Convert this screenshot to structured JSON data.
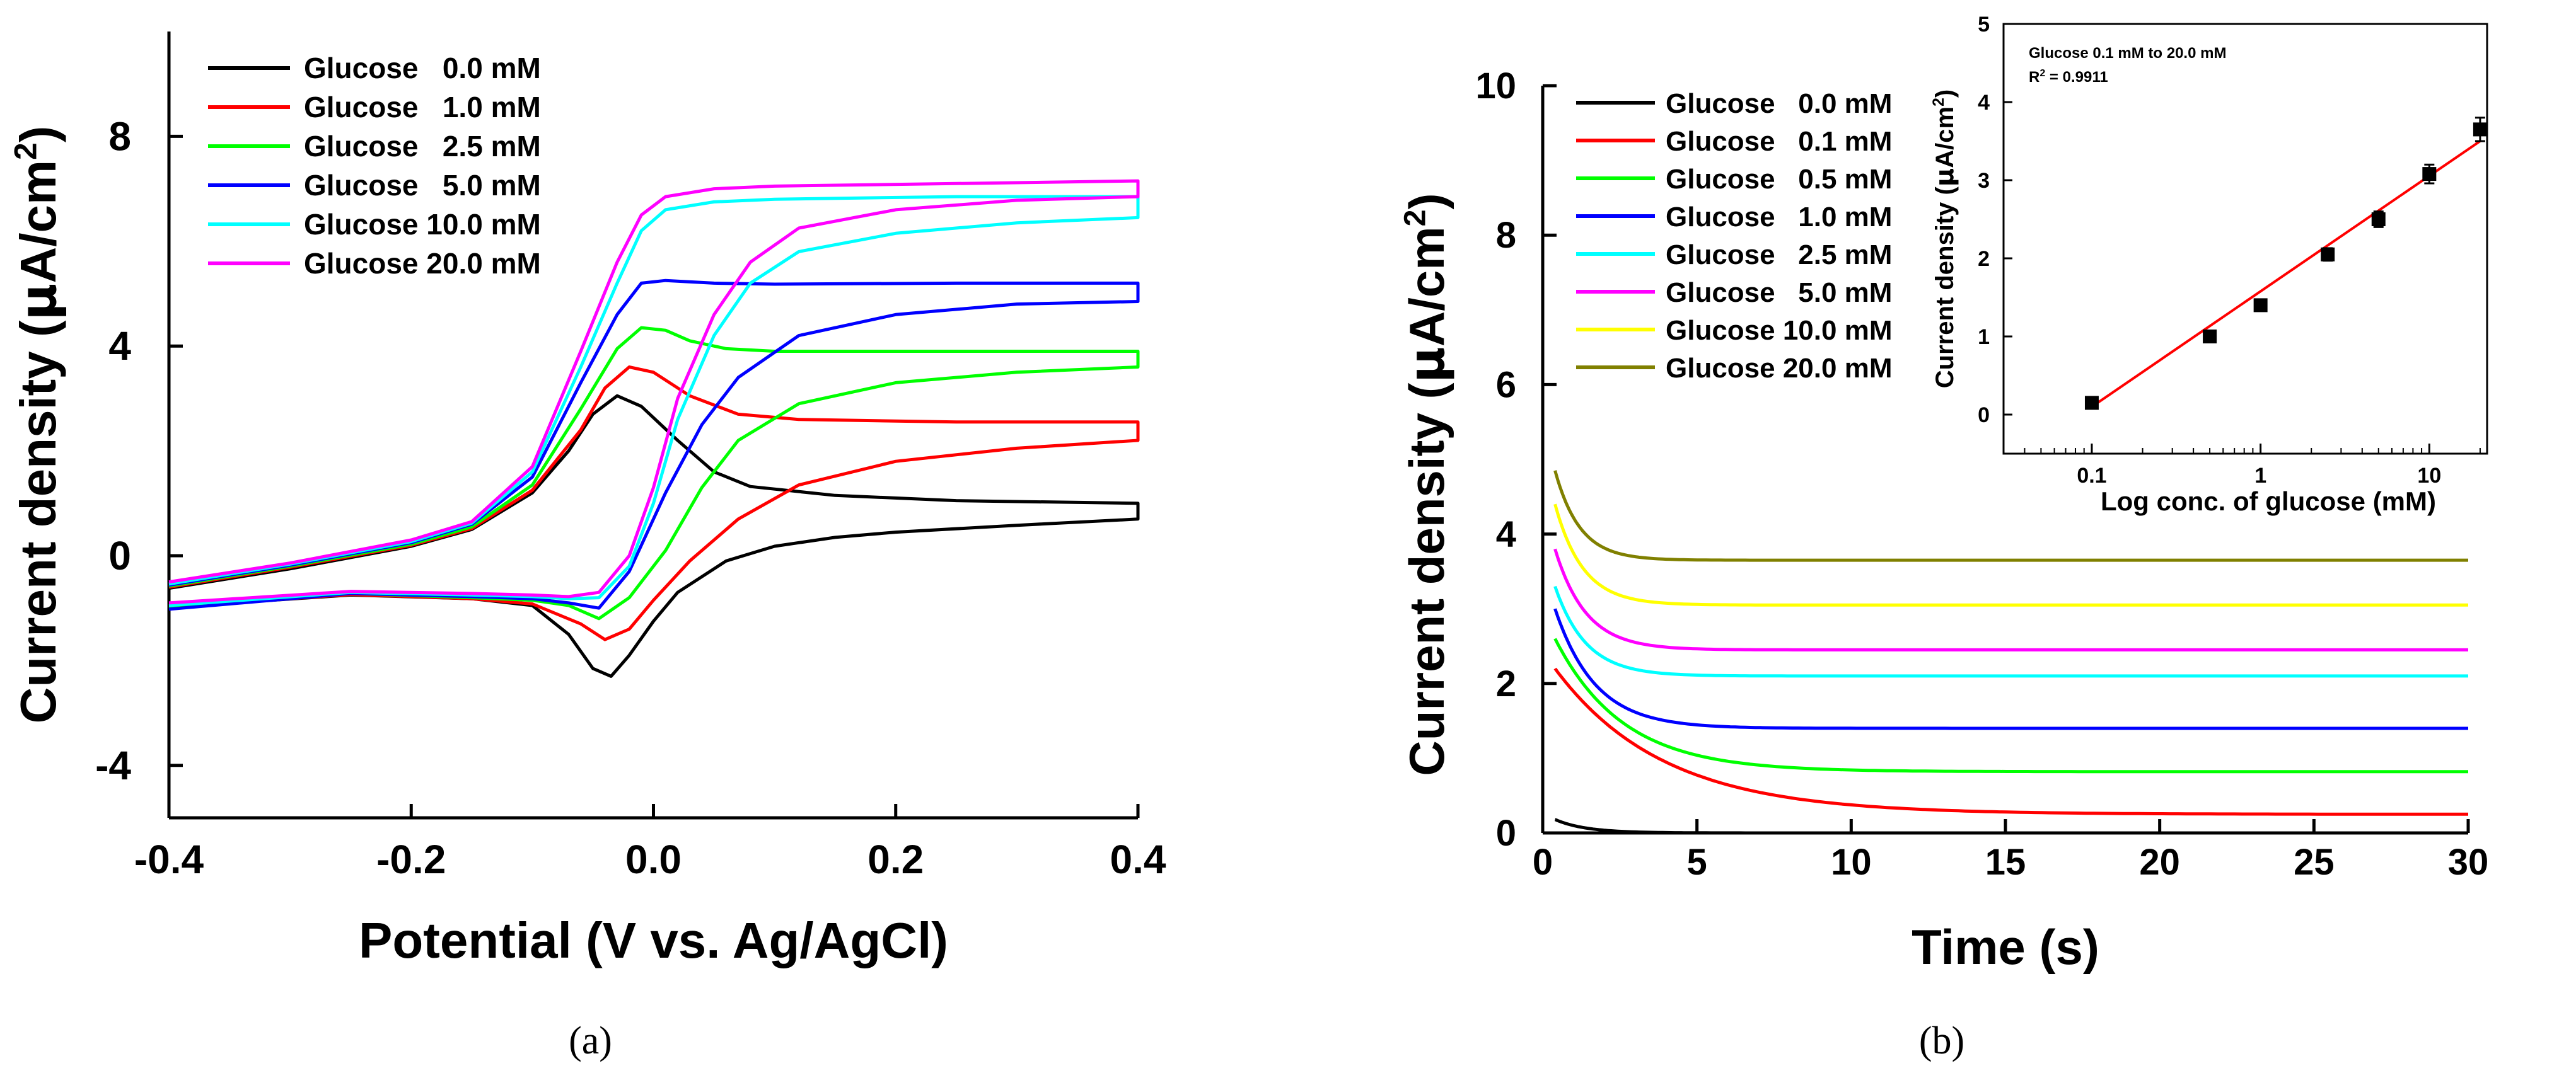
{
  "chart_data": [
    {
      "id": "a",
      "type": "line",
      "panel_label": "(a)",
      "title": "",
      "xlabel": "Potential (V vs. Ag/AgCl)",
      "ylabel": "Current density (µA/cm²)",
      "ylabel_parts": {
        "text": "Current density (",
        "mu": "µ",
        "unit": "A/cm",
        "sup": "2",
        "close": ")"
      },
      "xlim": [
        -0.4,
        0.4
      ],
      "ylim": [
        -5,
        10
      ],
      "xticks": [
        -0.4,
        -0.2,
        0.0,
        0.2,
        0.4
      ],
      "xtick_labels": [
        "-0.4",
        "-0.2",
        "0.0",
        "0.2",
        "0.4"
      ],
      "yticks": [
        -4,
        0,
        4,
        8
      ],
      "ytick_labels": [
        "-4",
        "0",
        "4",
        "8"
      ],
      "legend_position": "top-left",
      "series": [
        {
          "name": "Glucose   0.0 mM",
          "color": "#000000",
          "forward": [
            [
              -0.4,
              -0.62
            ],
            [
              -0.3,
              -0.25
            ],
            [
              -0.2,
              0.18
            ],
            [
              -0.15,
              0.5
            ],
            [
              -0.1,
              1.2
            ],
            [
              -0.07,
              2.0
            ],
            [
              -0.05,
              2.7
            ],
            [
              -0.03,
              3.05
            ],
            [
              -0.01,
              2.85
            ],
            [
              0.02,
              2.2
            ],
            [
              0.05,
              1.6
            ],
            [
              0.08,
              1.32
            ],
            [
              0.15,
              1.15
            ],
            [
              0.25,
              1.05
            ],
            [
              0.4,
              1.0
            ]
          ],
          "reverse": [
            [
              0.4,
              0.7
            ],
            [
              0.3,
              0.58
            ],
            [
              0.2,
              0.45
            ],
            [
              0.15,
              0.35
            ],
            [
              0.1,
              0.18
            ],
            [
              0.06,
              -0.1
            ],
            [
              0.02,
              -0.7
            ],
            [
              0.0,
              -1.25
            ],
            [
              -0.02,
              -1.9
            ],
            [
              -0.035,
              -2.3
            ],
            [
              -0.05,
              -2.15
            ],
            [
              -0.07,
              -1.5
            ],
            [
              -0.1,
              -0.95
            ],
            [
              -0.15,
              -0.82
            ],
            [
              -0.25,
              -0.75
            ],
            [
              -0.4,
              -0.98
            ]
          ]
        },
        {
          "name": "Glucose   1.0 mM",
          "color": "#ff0000",
          "forward": [
            [
              -0.4,
              -0.6
            ],
            [
              -0.3,
              -0.22
            ],
            [
              -0.2,
              0.2
            ],
            [
              -0.15,
              0.52
            ],
            [
              -0.1,
              1.25
            ],
            [
              -0.06,
              2.4
            ],
            [
              -0.04,
              3.2
            ],
            [
              -0.02,
              3.6
            ],
            [
              0.0,
              3.5
            ],
            [
              0.03,
              3.05
            ],
            [
              0.07,
              2.7
            ],
            [
              0.12,
              2.6
            ],
            [
              0.25,
              2.55
            ],
            [
              0.4,
              2.55
            ]
          ],
          "reverse": [
            [
              0.4,
              2.2
            ],
            [
              0.3,
              2.05
            ],
            [
              0.2,
              1.8
            ],
            [
              0.12,
              1.35
            ],
            [
              0.07,
              0.7
            ],
            [
              0.03,
              -0.1
            ],
            [
              0.0,
              -0.85
            ],
            [
              -0.02,
              -1.4
            ],
            [
              -0.04,
              -1.6
            ],
            [
              -0.06,
              -1.3
            ],
            [
              -0.1,
              -0.92
            ],
            [
              -0.15,
              -0.82
            ],
            [
              -0.25,
              -0.74
            ],
            [
              -0.4,
              -0.98
            ]
          ]
        },
        {
          "name": "Glucose   2.5 mM",
          "color": "#00ff00",
          "forward": [
            [
              -0.4,
              -0.58
            ],
            [
              -0.3,
              -0.2
            ],
            [
              -0.2,
              0.22
            ],
            [
              -0.15,
              0.55
            ],
            [
              -0.1,
              1.35
            ],
            [
              -0.06,
              2.8
            ],
            [
              -0.03,
              3.95
            ],
            [
              -0.01,
              4.35
            ],
            [
              0.01,
              4.3
            ],
            [
              0.03,
              4.1
            ],
            [
              0.06,
              3.95
            ],
            [
              0.1,
              3.9
            ],
            [
              0.25,
              3.9
            ],
            [
              0.4,
              3.9
            ]
          ],
          "reverse": [
            [
              0.4,
              3.6
            ],
            [
              0.3,
              3.5
            ],
            [
              0.2,
              3.3
            ],
            [
              0.12,
              2.9
            ],
            [
              0.07,
              2.2
            ],
            [
              0.04,
              1.3
            ],
            [
              0.01,
              0.1
            ],
            [
              -0.02,
              -0.8
            ],
            [
              -0.045,
              -1.2
            ],
            [
              -0.07,
              -0.95
            ],
            [
              -0.1,
              -0.85
            ],
            [
              -0.15,
              -0.8
            ],
            [
              -0.25,
              -0.72
            ],
            [
              -0.4,
              -1.0
            ]
          ]
        },
        {
          "name": "Glucose   5.0 mM",
          "color": "#0000ff",
          "forward": [
            [
              -0.4,
              -0.56
            ],
            [
              -0.3,
              -0.18
            ],
            [
              -0.2,
              0.25
            ],
            [
              -0.15,
              0.6
            ],
            [
              -0.1,
              1.5
            ],
            [
              -0.06,
              3.3
            ],
            [
              -0.03,
              4.6
            ],
            [
              -0.01,
              5.2
            ],
            [
              0.01,
              5.25
            ],
            [
              0.05,
              5.2
            ],
            [
              0.1,
              5.18
            ],
            [
              0.25,
              5.2
            ],
            [
              0.4,
              5.2
            ]
          ],
          "reverse": [
            [
              0.4,
              4.85
            ],
            [
              0.3,
              4.8
            ],
            [
              0.2,
              4.6
            ],
            [
              0.12,
              4.2
            ],
            [
              0.07,
              3.4
            ],
            [
              0.04,
              2.5
            ],
            [
              0.01,
              1.2
            ],
            [
              -0.02,
              -0.3
            ],
            [
              -0.045,
              -1.0
            ],
            [
              -0.07,
              -0.9
            ],
            [
              -0.1,
              -0.82
            ],
            [
              -0.15,
              -0.78
            ],
            [
              -0.25,
              -0.72
            ],
            [
              -0.4,
              -1.02
            ]
          ]
        },
        {
          "name": "Glucose 10.0 mM",
          "color": "#00ffff",
          "forward": [
            [
              -0.4,
              -0.54
            ],
            [
              -0.3,
              -0.16
            ],
            [
              -0.2,
              0.27
            ],
            [
              -0.15,
              0.62
            ],
            [
              -0.1,
              1.6
            ],
            [
              -0.06,
              3.6
            ],
            [
              -0.03,
              5.2
            ],
            [
              -0.01,
              6.2
            ],
            [
              0.01,
              6.6
            ],
            [
              0.05,
              6.75
            ],
            [
              0.1,
              6.8
            ],
            [
              0.25,
              6.85
            ],
            [
              0.4,
              6.85
            ]
          ],
          "reverse": [
            [
              0.4,
              6.45
            ],
            [
              0.3,
              6.35
            ],
            [
              0.2,
              6.15
            ],
            [
              0.12,
              5.8
            ],
            [
              0.08,
              5.2
            ],
            [
              0.05,
              4.2
            ],
            [
              0.02,
              2.6
            ],
            [
              0.0,
              1.0
            ],
            [
              -0.02,
              -0.2
            ],
            [
              -0.045,
              -0.8
            ],
            [
              -0.07,
              -0.82
            ],
            [
              -0.1,
              -0.78
            ],
            [
              -0.15,
              -0.75
            ],
            [
              -0.25,
              -0.7
            ],
            [
              -0.4,
              -0.95
            ]
          ]
        },
        {
          "name": "Glucose 20.0 mM",
          "color": "#ff00ff",
          "forward": [
            [
              -0.4,
              -0.5
            ],
            [
              -0.3,
              -0.14
            ],
            [
              -0.2,
              0.3
            ],
            [
              -0.15,
              0.65
            ],
            [
              -0.1,
              1.7
            ],
            [
              -0.06,
              3.9
            ],
            [
              -0.03,
              5.6
            ],
            [
              -0.01,
              6.5
            ],
            [
              0.01,
              6.85
            ],
            [
              0.05,
              7.0
            ],
            [
              0.1,
              7.05
            ],
            [
              0.25,
              7.1
            ],
            [
              0.4,
              7.15
            ]
          ],
          "reverse": [
            [
              0.4,
              6.85
            ],
            [
              0.3,
              6.78
            ],
            [
              0.2,
              6.6
            ],
            [
              0.12,
              6.25
            ],
            [
              0.08,
              5.6
            ],
            [
              0.05,
              4.6
            ],
            [
              0.02,
              3.0
            ],
            [
              0.0,
              1.3
            ],
            [
              -0.02,
              0.0
            ],
            [
              -0.045,
              -0.7
            ],
            [
              -0.07,
              -0.78
            ],
            [
              -0.1,
              -0.75
            ],
            [
              -0.15,
              -0.72
            ],
            [
              -0.25,
              -0.68
            ],
            [
              -0.4,
              -0.9
            ]
          ]
        }
      ]
    },
    {
      "id": "b",
      "type": "line",
      "panel_label": "(b)",
      "title": "",
      "xlabel": "Time (s)",
      "ylabel": "Current density (µA/cm²)",
      "ylabel_parts": {
        "text": "Current density (",
        "mu": "µ",
        "unit": "A/cm",
        "sup": "2",
        "close": ")"
      },
      "xlim": [
        0,
        30
      ],
      "ylim": [
        0,
        10
      ],
      "xticks": [
        0,
        5,
        10,
        15,
        20,
        25,
        30
      ],
      "xtick_labels": [
        "0",
        "5",
        "10",
        "15",
        "20",
        "25",
        "30"
      ],
      "yticks": [
        0,
        2,
        4,
        6,
        8,
        10
      ],
      "ytick_labels": [
        "0",
        "2",
        "4",
        "6",
        "8",
        "10"
      ],
      "legend_position": "top-left",
      "series": [
        {
          "name": "Glucose   0.0 mM",
          "color": "#000000",
          "start": [
            0.4,
            0.18
          ],
          "plateau": 0.0,
          "tau": 1.0
        },
        {
          "name": "Glucose   0.1 mM",
          "color": "#ff0000",
          "start": [
            0.4,
            2.2
          ],
          "plateau": 0.25,
          "tau": 3.5
        },
        {
          "name": "Glucose   0.5 mM",
          "color": "#00ff00",
          "start": [
            0.4,
            2.6
          ],
          "plateau": 0.82,
          "tau": 2.2
        },
        {
          "name": "Glucose   1.0 mM",
          "color": "#0000ff",
          "start": [
            0.4,
            3.0
          ],
          "plateau": 1.4,
          "tau": 1.3
        },
        {
          "name": "Glucose   2.5 mM",
          "color": "#00ffff",
          "start": [
            0.4,
            3.3
          ],
          "plateau": 2.1,
          "tau": 1.0
        },
        {
          "name": "Glucose   5.0 mM",
          "color": "#ff00ff",
          "start": [
            0.4,
            3.8
          ],
          "plateau": 2.45,
          "tau": 1.0
        },
        {
          "name": "Glucose 10.0 mM",
          "color": "#ffff00",
          "start": [
            0.4,
            4.4
          ],
          "plateau": 3.05,
          "tau": 0.9
        },
        {
          "name": "Glucose 20.0 mM",
          "color": "#808000",
          "start": [
            0.4,
            4.85
          ],
          "plateau": 3.65,
          "tau": 0.8
        }
      ],
      "inset": {
        "type": "scatter",
        "xscale": "log",
        "xlabel": "Log conc. of glucose (mM)",
        "ylabel": "Current density (µA/cm²)",
        "ylabel_parts": {
          "text": "Current density (",
          "mu": "µ",
          "unit": "A/cm",
          "sup": "2",
          "close": ")"
        },
        "xlim": [
          0.03,
          22
        ],
        "ylim": [
          -0.5,
          5
        ],
        "xticks": [
          0.1,
          1,
          10
        ],
        "xtick_labels": [
          "0.1",
          "1",
          "10"
        ],
        "yticks": [
          0,
          1,
          2,
          3,
          4,
          5
        ],
        "ytick_labels": [
          "0",
          "1",
          "2",
          "3",
          "4",
          "5"
        ],
        "annotation": "Glucose 0.1 mM to 20.0 mM",
        "r2_label": "R² = 0.9911",
        "r2_parts": {
          "r": "R",
          "sup": "2",
          "rest": " = 0.9911"
        },
        "fit_line": {
          "x": [
            0.1,
            20.0
          ],
          "y": [
            0.1,
            3.5
          ],
          "color": "#ff0000"
        },
        "points": [
          {
            "x": 0.1,
            "y": 0.15,
            "err": 0.05
          },
          {
            "x": 0.5,
            "y": 1.0,
            "err": 0.05
          },
          {
            "x": 1.0,
            "y": 1.4,
            "err": 0.05
          },
          {
            "x": 2.5,
            "y": 2.05,
            "err": 0.08
          },
          {
            "x": 5.0,
            "y": 2.5,
            "err": 0.1
          },
          {
            "x": 10.0,
            "y": 3.08,
            "err": 0.12
          },
          {
            "x": 20.0,
            "y": 3.65,
            "err": 0.15
          }
        ]
      }
    }
  ]
}
